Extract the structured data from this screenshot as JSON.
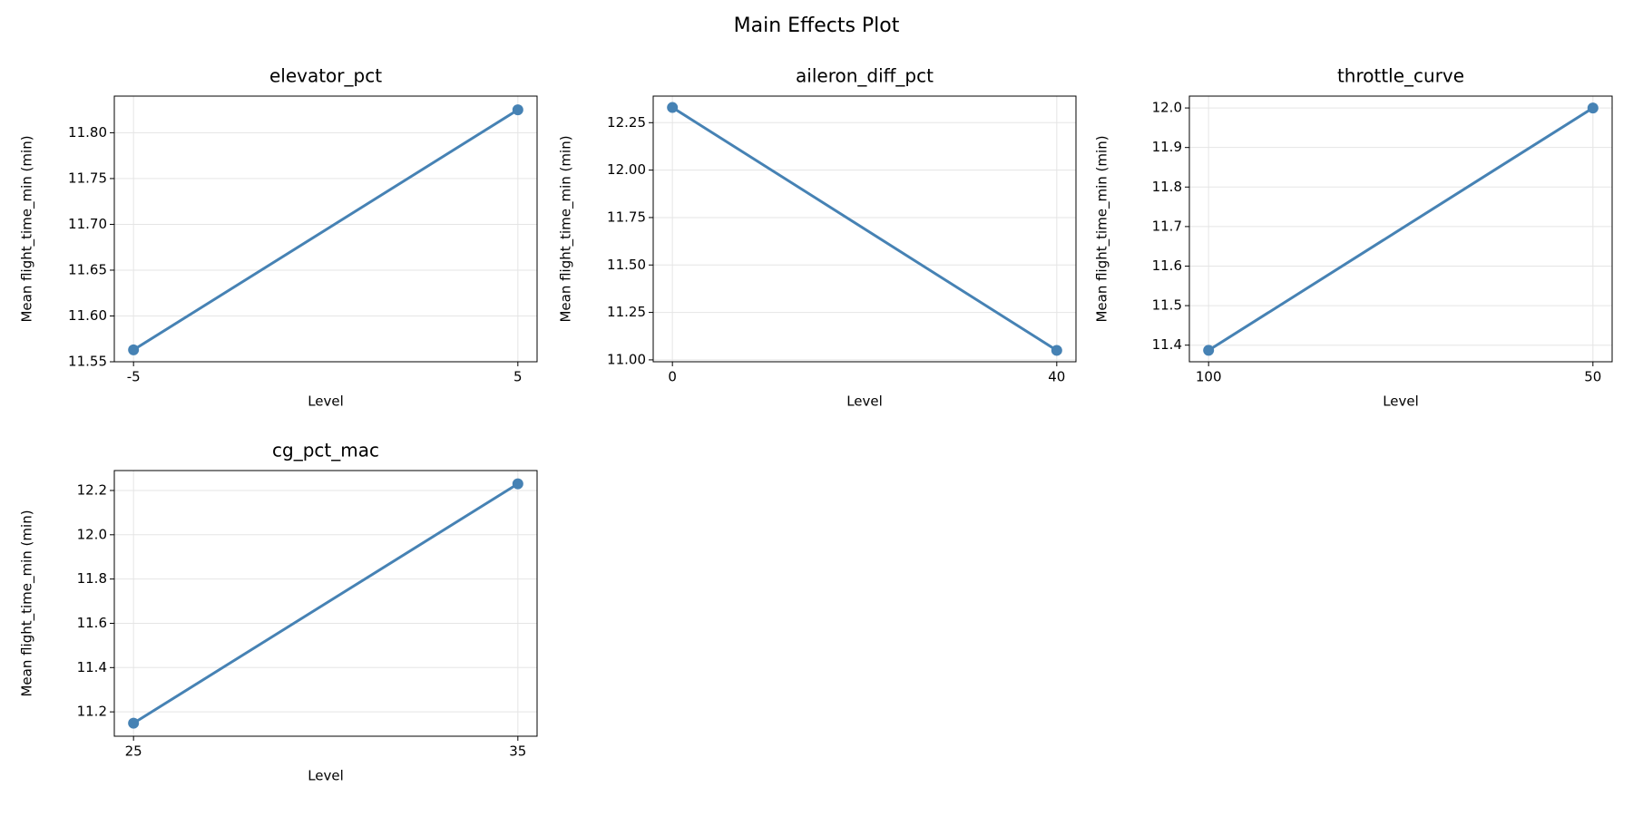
{
  "title": "Main Effects Plot",
  "chart_data": [
    {
      "type": "line",
      "title": "elevator_pct",
      "xlabel": "Level",
      "ylabel": "Mean flight_time_min (min)",
      "categories": [
        "-5",
        "5"
      ],
      "values": [
        11.563,
        11.825
      ],
      "color": "#4682b4",
      "grid": true,
      "ylim": [
        11.55,
        11.84
      ],
      "yticks": [
        11.55,
        {
          "value": 11.6,
          "label": "11.60"
        },
        11.65,
        {
          "value": 11.7,
          "label": "11.70"
        },
        11.75,
        {
          "value": 11.8,
          "label": "11.80"
        }
      ]
    },
    {
      "type": "line",
      "title": "aileron_diff_pct",
      "xlabel": "Level",
      "ylabel": "Mean flight_time_min (min)",
      "categories": [
        "0",
        "40"
      ],
      "values": [
        12.33,
        11.05
      ],
      "color": "#4682b4",
      "grid": true,
      "ylim": [
        10.99,
        12.39
      ],
      "yticks": [
        {
          "value": 11,
          "label": "11.00"
        },
        11.25,
        {
          "value": 11.5,
          "label": "11.50"
        },
        11.75,
        {
          "value": 12,
          "label": "12.00"
        },
        12.25
      ]
    },
    {
      "type": "line",
      "title": "throttle_curve",
      "xlabel": "Level",
      "ylabel": "Mean flight_time_min (min)",
      "categories": [
        "100",
        "50"
      ],
      "values": [
        11.387,
        12.0
      ],
      "color": "#4682b4",
      "grid": true,
      "ylim": [
        11.358,
        12.03
      ],
      "yticks": [
        11.4,
        11.5,
        11.6,
        11.7,
        11.8,
        11.9,
        {
          "value": 12,
          "label": "12.0"
        }
      ]
    },
    {
      "type": "line",
      "title": "cg_pct_mac",
      "xlabel": "Level",
      "ylabel": "Mean flight_time_min (min)",
      "categories": [
        "25",
        "35"
      ],
      "values": [
        11.149,
        12.23
      ],
      "color": "#4682b4",
      "grid": true,
      "ylim": [
        11.09,
        12.29
      ],
      "yticks": [
        11.2,
        11.4,
        11.6,
        11.8,
        {
          "value": 12,
          "label": "12.0"
        },
        12.2
      ]
    }
  ]
}
